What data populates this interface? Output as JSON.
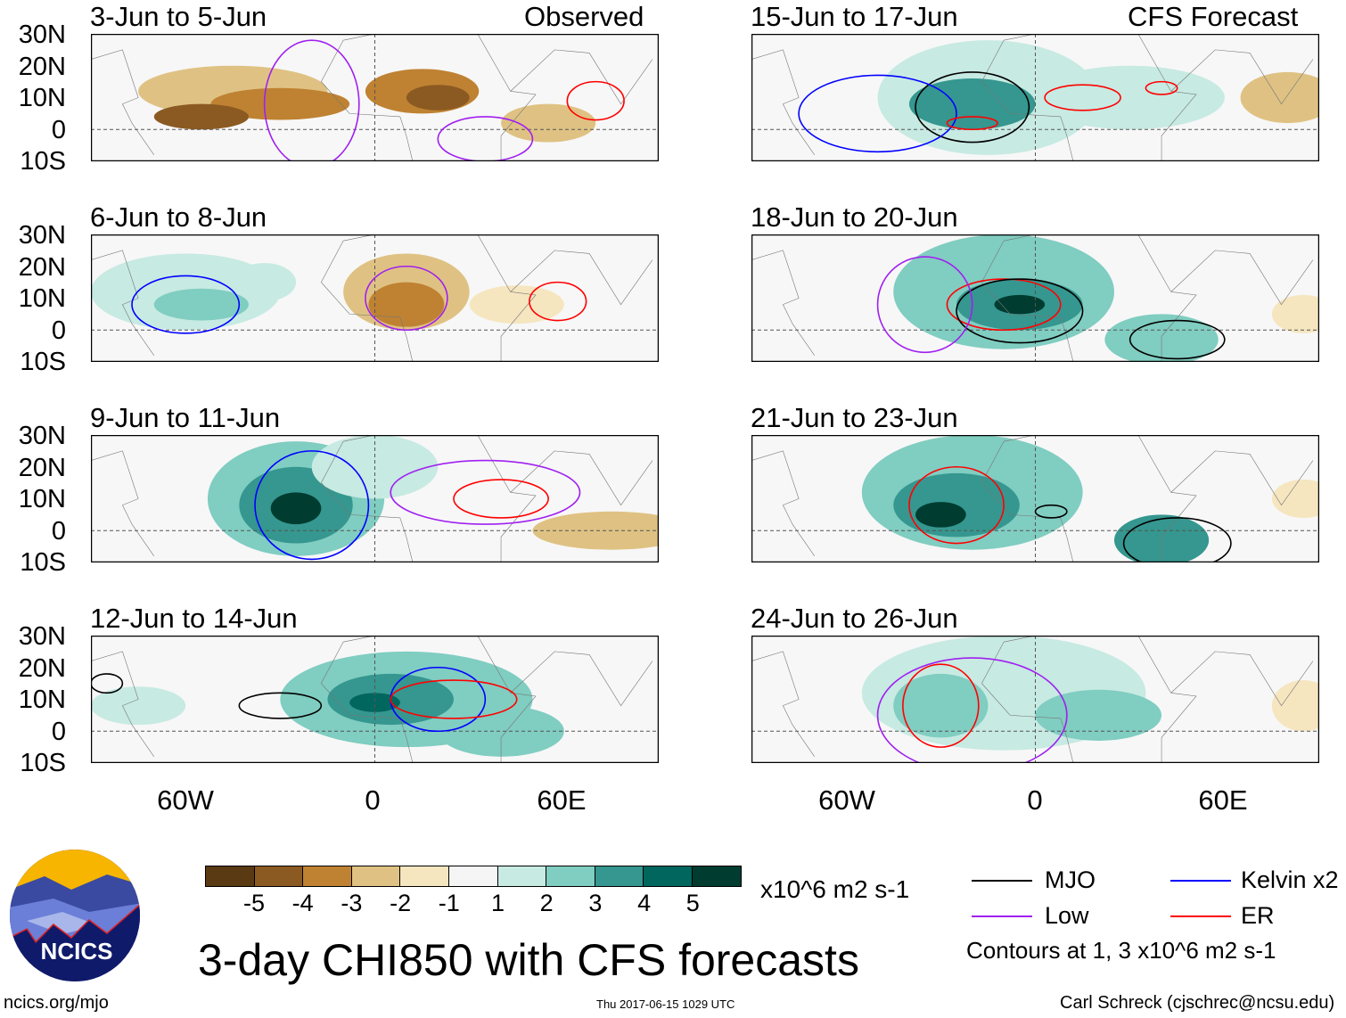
{
  "header": {
    "left_tag": "Observed",
    "right_tag": "CFS Forecast"
  },
  "panels": [
    {
      "title": "3-Jun to 5-Jun",
      "side": "left",
      "blobs": [
        [
          -45,
          12,
          30,
          8,
          -2
        ],
        [
          -30,
          8,
          22,
          5,
          -3
        ],
        [
          -55,
          4,
          15,
          4,
          -4
        ],
        [
          15,
          12,
          18,
          7,
          -3
        ],
        [
          20,
          10,
          10,
          4,
          -4
        ],
        [
          55,
          2,
          15,
          6,
          -2
        ]
      ],
      "contours": [
        [
          -20,
          8,
          15,
          20,
          "low"
        ],
        [
          70,
          9,
          9,
          6,
          "er"
        ],
        [
          35,
          -3,
          15,
          7,
          "low"
        ]
      ]
    },
    {
      "title": "6-Jun to 8-Jun",
      "side": "left",
      "blobs": [
        [
          -60,
          12,
          30,
          12,
          1
        ],
        [
          -55,
          8,
          15,
          5,
          2
        ],
        [
          -35,
          15,
          10,
          6,
          1
        ],
        [
          10,
          12,
          20,
          12,
          -2
        ],
        [
          10,
          8,
          12,
          7,
          -3
        ],
        [
          45,
          8,
          15,
          6,
          -1
        ]
      ],
      "contours": [
        [
          -60,
          8,
          17,
          9,
          "kelvin"
        ],
        [
          10,
          10,
          13,
          10,
          "low"
        ],
        [
          58,
          9,
          9,
          6,
          "er"
        ]
      ]
    },
    {
      "title": "9-Jun to 11-Jun",
      "side": "left",
      "blobs": [
        [
          -25,
          10,
          28,
          18,
          2
        ],
        [
          -25,
          8,
          18,
          12,
          3
        ],
        [
          -25,
          7,
          8,
          5,
          5
        ],
        [
          0,
          20,
          20,
          10,
          1
        ],
        [
          75,
          0,
          25,
          6,
          -2
        ]
      ],
      "contours": [
        [
          -20,
          8,
          18,
          17,
          "kelvin"
        ],
        [
          40,
          10,
          15,
          6,
          "er"
        ],
        [
          35,
          12,
          30,
          10,
          "low"
        ]
      ]
    },
    {
      "title": "12-Jun to 14-Jun",
      "side": "left",
      "blobs": [
        [
          10,
          10,
          40,
          15,
          2
        ],
        [
          5,
          10,
          20,
          8,
          3
        ],
        [
          0,
          9,
          8,
          3,
          4
        ],
        [
          -75,
          8,
          15,
          6,
          1
        ],
        [
          40,
          0,
          20,
          8,
          2
        ]
      ],
      "contours": [
        [
          -30,
          8,
          13,
          4,
          "mjo"
        ],
        [
          20,
          10,
          15,
          10,
          "kelvin"
        ],
        [
          25,
          10,
          20,
          6,
          "er"
        ],
        [
          -85,
          15,
          5,
          3,
          "mjo"
        ]
      ]
    },
    {
      "title": "15-Jun to 17-Jun",
      "side": "right",
      "blobs": [
        [
          -15,
          10,
          35,
          18,
          1
        ],
        [
          -20,
          8,
          20,
          8,
          3
        ],
        [
          30,
          10,
          30,
          10,
          1
        ],
        [
          80,
          10,
          15,
          8,
          -2
        ]
      ],
      "contours": [
        [
          -20,
          7,
          18,
          11,
          "mjo"
        ],
        [
          15,
          10,
          12,
          4,
          "er"
        ],
        [
          40,
          13,
          5,
          2,
          "er"
        ],
        [
          -50,
          5,
          25,
          12,
          "kelvin"
        ],
        [
          -20,
          2,
          8,
          2,
          "er"
        ]
      ]
    },
    {
      "title": "18-Jun to 20-Jun",
      "side": "right",
      "blobs": [
        [
          -10,
          12,
          35,
          18,
          2
        ],
        [
          -5,
          8,
          20,
          8,
          3
        ],
        [
          -5,
          8,
          8,
          3,
          5
        ],
        [
          40,
          -3,
          18,
          8,
          2
        ],
        [
          85,
          5,
          10,
          6,
          -1
        ]
      ],
      "contours": [
        [
          -10,
          8,
          18,
          8,
          "er"
        ],
        [
          -5,
          6,
          20,
          10,
          "mjo"
        ],
        [
          45,
          -3,
          15,
          6,
          "mjo"
        ],
        [
          -35,
          8,
          15,
          15,
          "low"
        ]
      ]
    },
    {
      "title": "21-Jun to 23-Jun",
      "side": "right",
      "blobs": [
        [
          -20,
          12,
          35,
          18,
          2
        ],
        [
          -25,
          8,
          20,
          10,
          3
        ],
        [
          -30,
          5,
          8,
          4,
          5
        ],
        [
          40,
          -3,
          15,
          8,
          3
        ],
        [
          85,
          10,
          10,
          6,
          -1
        ]
      ],
      "contours": [
        [
          -25,
          8,
          15,
          12,
          "er"
        ],
        [
          45,
          -4,
          17,
          8,
          "mjo"
        ],
        [
          5,
          6,
          5,
          2,
          "mjo"
        ]
      ]
    },
    {
      "title": "24-Jun to 26-Jun",
      "side": "right",
      "blobs": [
        [
          -10,
          12,
          45,
          18,
          1
        ],
        [
          -30,
          8,
          15,
          10,
          2
        ],
        [
          20,
          5,
          20,
          8,
          2
        ],
        [
          85,
          8,
          10,
          8,
          -1
        ]
      ],
      "contours": [
        [
          -30,
          8,
          12,
          13,
          "er"
        ],
        [
          -20,
          5,
          30,
          18,
          "low"
        ]
      ]
    }
  ],
  "axes": {
    "lat_ticks": [
      "30N",
      "20N",
      "10N",
      "0",
      "10S"
    ],
    "lon_ticks": [
      "60W",
      "0",
      "60E"
    ]
  },
  "colorbar": {
    "colors": [
      "#5a3a12",
      "#8b5a22",
      "#bf8232",
      "#dfc283",
      "#f5e6c0",
      "#f5f5f5",
      "#c7eae2",
      "#80cdc1",
      "#35978f",
      "#01665e",
      "#003c30"
    ],
    "labels": [
      "-5",
      "-4",
      "-3",
      "-2",
      "-1",
      "1",
      "2",
      "3",
      "4",
      "5"
    ],
    "units": "x10^6 m2 s-1"
  },
  "legend": {
    "mjo": "MJO",
    "kelvin": "Kelvin x2",
    "low": "Low",
    "er": "ER",
    "note": "Contours at 1, 3 x10^6 m2 s-1",
    "colors": {
      "mjo": "#000000",
      "kelvin": "#0000ff",
      "low": "#a020f0",
      "er": "#ff0000"
    }
  },
  "footer": {
    "title": "3-day CHI850 with CFS forecasts",
    "url": "ncics.org/mjo",
    "timestamp": "Thu 2017-06-15 1029 UTC",
    "credit": "Carl Schreck (cjschrec@ncsu.edu)",
    "logo_text": "NCICS"
  }
}
